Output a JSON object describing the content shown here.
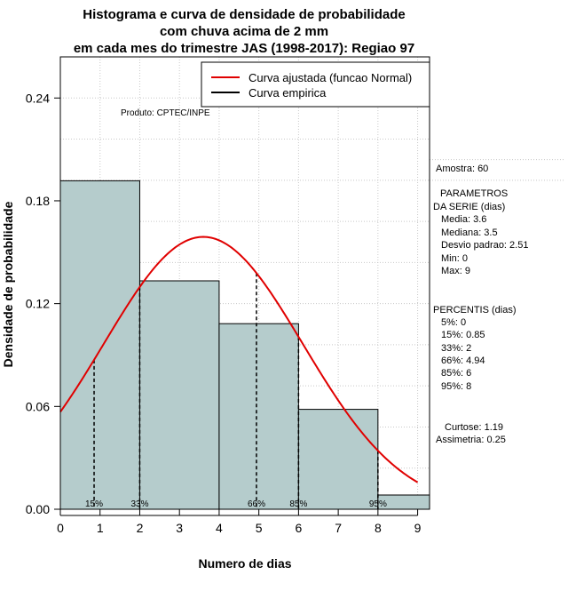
{
  "chart_data": {
    "type": "bar",
    "title_lines": [
      "Histograma e curva de densidade de probabilidade",
      "com chuva acima de 2 mm",
      "em cada mes do trimestre JAS (1998-2017): Regiao 97"
    ],
    "xlabel": "Numero de dias",
    "ylabel": "Densidade de probabilidade",
    "xlim": [
      0,
      9.3
    ],
    "ylim": [
      0,
      0.264
    ],
    "x_ticks": [
      0,
      1,
      2,
      3,
      4,
      5,
      6,
      7,
      8,
      9
    ],
    "y_ticks": [
      0.0,
      0.06,
      0.12,
      0.18,
      0.24
    ],
    "y_tick_labels": [
      "0.00",
      "0.06",
      "0.12",
      "0.18",
      "0.24"
    ],
    "bins": [
      {
        "x0": 0,
        "x1": 2,
        "density": 0.1917
      },
      {
        "x0": 2,
        "x1": 4,
        "density": 0.1333
      },
      {
        "x0": 4,
        "x1": 6,
        "density": 0.1083
      },
      {
        "x0": 6,
        "x1": 8,
        "density": 0.0583
      },
      {
        "x0": 8,
        "x1": 10,
        "density": 0.0083
      }
    ],
    "bar_color": "#b5cccc",
    "normal_curve": {
      "mean": 3.6,
      "sd": 2.51,
      "x_from": 0,
      "x_to": 9,
      "color": "#e00000"
    },
    "percentile_lines": [
      {
        "label": "15%",
        "x": 0.85
      },
      {
        "label": "33%",
        "x": 2
      },
      {
        "label": "66%",
        "x": 4.94
      },
      {
        "label": "85%",
        "x": 6
      },
      {
        "label": "95%",
        "x": 8
      }
    ],
    "legend": [
      {
        "label": "Curva ajustada (funcao Normal)",
        "color": "#e00000"
      },
      {
        "label": "Curva empirica",
        "color": "#000000"
      }
    ],
    "legend_position": "top-right",
    "grid": true,
    "annotation": "Produto: CPTEC/INPE"
  },
  "side_panel": {
    "amostra": "Amostra: 60",
    "param_title_1": "PARAMETROS",
    "param_title_2": "DA SERIE (dias)",
    "media": "Media: 3.6",
    "mediana": "Mediana: 3.5",
    "desvio": "Desvio padrao: 2.51",
    "min": "Min: 0",
    "max": "Max: 9",
    "percentis_title": "PERCENTIS (dias)",
    "p5": "5%: 0",
    "p15": "15%: 0.85",
    "p33": "33%: 2",
    "p66": "66%: 4.94",
    "p85": "85%: 6",
    "p95": "95%: 8",
    "curtose": "Curtose: 1.19",
    "assimetria": "Assimetria: 0.25"
  }
}
